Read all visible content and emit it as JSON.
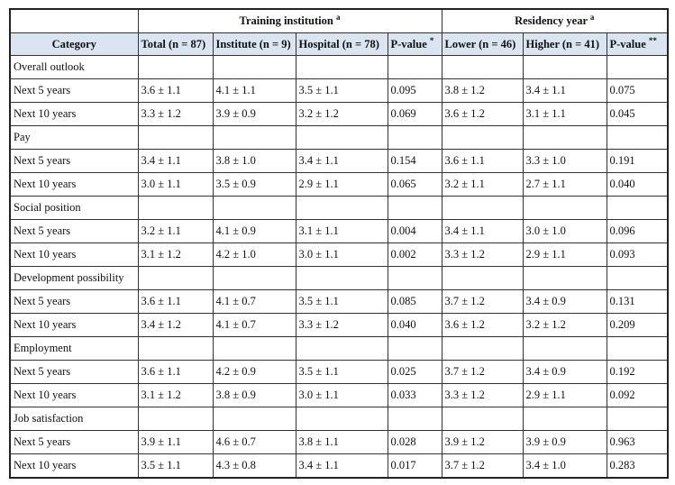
{
  "table": {
    "header_groups": [
      {
        "text": "Training institution",
        "note": "a"
      },
      {
        "text": "Residency year",
        "note": "a"
      }
    ],
    "columns": [
      {
        "text": "Category"
      },
      {
        "text": "Total (n = 87)"
      },
      {
        "text": "Institute (n = 9)"
      },
      {
        "text": "Hospital (n = 78)"
      },
      {
        "text": "P-value",
        "note": "*"
      },
      {
        "text": "Lower (n = 46)"
      },
      {
        "text": "Higher (n = 41)"
      },
      {
        "text": "P-value",
        "note": "**"
      }
    ],
    "sections": [
      {
        "name": "Overall outlook",
        "rows": [
          {
            "label": "Next 5 years",
            "cells": [
              "3.6 ± 1.1",
              "4.1 ± 1.1",
              "3.5 ± 1.1",
              "0.095",
              "3.8 ± 1.2",
              "3.4 ± 1.1",
              "0.075"
            ]
          },
          {
            "label": "Next 10 years",
            "cells": [
              "3.3 ± 1.2",
              "3.9 ± 0.9",
              "3.2 ± 1.2",
              "0.069",
              "3.6 ± 1.2",
              "3.1 ± 1.1",
              "0.045"
            ]
          }
        ]
      },
      {
        "name": "Pay",
        "rows": [
          {
            "label": "Next 5 years",
            "cells": [
              "3.4 ± 1.1",
              "3.8 ± 1.0",
              "3.4 ± 1.1",
              "0.154",
              "3.6 ± 1.1",
              "3.3 ± 1.0",
              "0.191"
            ]
          },
          {
            "label": "Next 10 years",
            "cells": [
              "3.0 ± 1.1",
              "3.5 ± 0.9",
              "2.9 ± 1.1",
              "0.065",
              "3.2 ± 1.1",
              "2.7 ± 1.1",
              "0.040"
            ]
          }
        ]
      },
      {
        "name": "Social position",
        "rows": [
          {
            "label": "Next 5 years",
            "cells": [
              "3.2 ± 1.1",
              "4.1 ± 0.9",
              "3.1 ± 1.1",
              "0.004",
              "3.4 ± 1.1",
              "3.0 ± 1.0",
              "0.096"
            ]
          },
          {
            "label": "Next 10 years",
            "cells": [
              "3.1 ± 1.2",
              "4.2 ± 1.0",
              "3.0 ± 1.1",
              "0.002",
              "3.3 ± 1.2",
              "2.9 ± 1.1",
              "0.093"
            ]
          }
        ]
      },
      {
        "name": "Development possibility",
        "rows": [
          {
            "label": "Next 5 years",
            "cells": [
              "3.6 ± 1.1",
              "4.1 ± 0.7",
              "3.5 ± 1.1",
              "0.085",
              "3.7 ± 1.2",
              "3.4 ± 0.9",
              "0.131"
            ]
          },
          {
            "label": "Next 10 years",
            "cells": [
              "3.4 ± 1.2",
              "4.1 ± 0.7",
              "3.3 ± 1.2",
              "0.040",
              "3.6 ± 1.2",
              "3.2 ± 1.2",
              "0.209"
            ]
          }
        ]
      },
      {
        "name": "Employment",
        "rows": [
          {
            "label": "Next 5 years",
            "cells": [
              "3.6 ± 1.1",
              "4.2 ± 0.9",
              "3.5 ± 1.1",
              "0.025",
              "3.7 ± 1.2",
              "3.4 ± 0.9",
              "0.192"
            ]
          },
          {
            "label": "Next 10 years",
            "cells": [
              "3.1 ± 1.2",
              "3.8 ± 0.9",
              "3.0 ± 1.1",
              "0.033",
              "3.3 ± 1.2",
              "2.9 ± 1.1",
              "0.092"
            ]
          }
        ]
      },
      {
        "name": "Job satisfaction",
        "rows": [
          {
            "label": "Next 5 years",
            "cells": [
              "3.9 ± 1.1",
              "4.6 ± 0.7",
              "3.8 ± 1.1",
              "0.028",
              "3.9 ± 1.2",
              "3.9 ± 0.9",
              "0.963"
            ]
          },
          {
            "label": "Next 10 years",
            "cells": [
              "3.5 ± 1.1",
              "4.3 ± 0.8",
              "3.4 ± 1.1",
              "0.017",
              "3.7 ± 1.2",
              "3.4 ± 1.0",
              "0.283"
            ]
          }
        ]
      }
    ]
  }
}
